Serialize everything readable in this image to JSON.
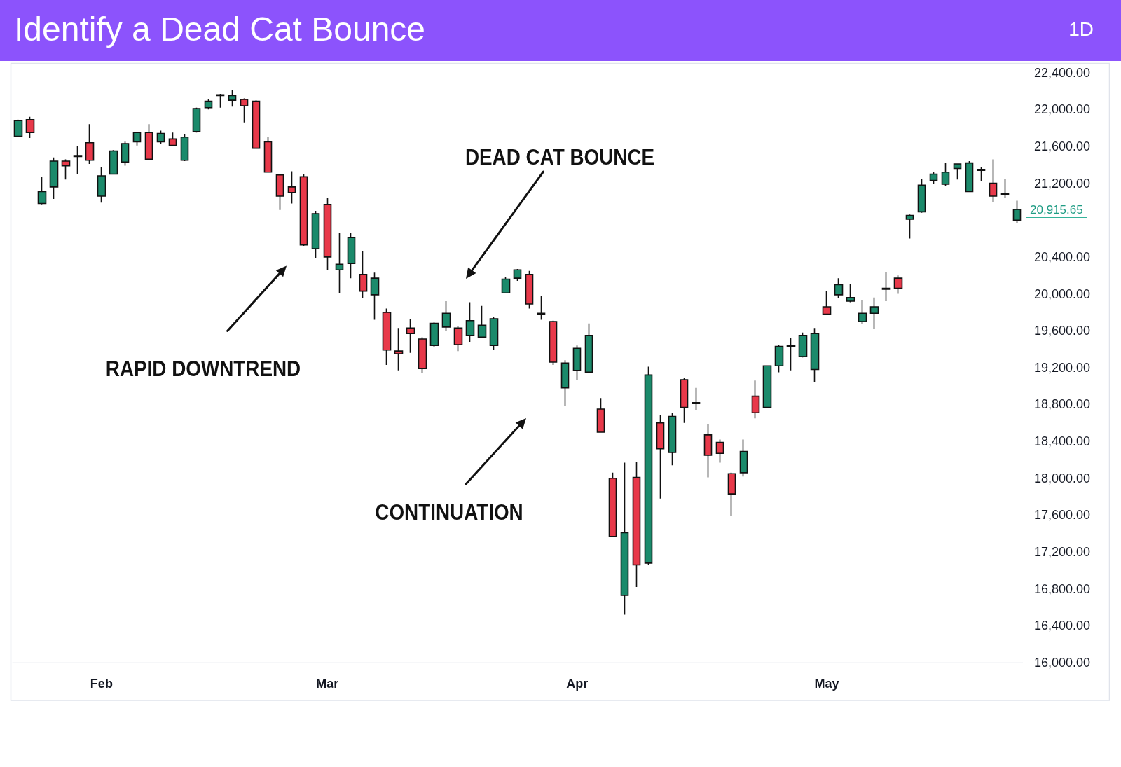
{
  "chart_data": {
    "type": "candlestick",
    "title": "Identify a Dead Cat Bounce",
    "subtitle": "1D",
    "annotations": [
      "RAPID DOWNTREND",
      "DEAD CAT BOUNCE",
      "CONTINUATION",
      "20,915.65"
    ],
    "categories": [
      null,
      null,
      null,
      null,
      null,
      null,
      null,
      "Feb",
      null,
      null,
      null,
      null,
      null,
      null,
      null,
      null,
      null,
      null,
      null,
      null,
      null,
      null,
      null,
      null,
      null,
      null,
      "Mar",
      null,
      null,
      null,
      null,
      null,
      null,
      null,
      null,
      null,
      null,
      null,
      null,
      null,
      null,
      null,
      null,
      null,
      null,
      null,
      null,
      "Apr",
      null,
      null,
      null,
      null,
      null,
      null,
      null,
      null,
      null,
      null,
      null,
      null,
      null,
      null,
      null,
      null,
      null,
      null,
      null,
      null,
      "May",
      null,
      null,
      null,
      null,
      null,
      null,
      null,
      null,
      null,
      null,
      null,
      null,
      null,
      null,
      null,
      null
    ],
    "ohlc": [
      [
        21710,
        21890,
        21700,
        21880
      ],
      [
        21890,
        21920,
        21690,
        21750
      ],
      [
        20980,
        21270,
        20970,
        21110
      ],
      [
        21160,
        21480,
        21030,
        21440
      ],
      [
        21440,
        21460,
        21240,
        21390
      ],
      [
        21490,
        21600,
        21300,
        21500
      ],
      [
        21640,
        21840,
        21410,
        21450
      ],
      [
        21060,
        21380,
        20990,
        21280
      ],
      [
        21300,
        21560,
        21300,
        21550
      ],
      [
        21430,
        21650,
        21390,
        21630
      ],
      [
        21650,
        21760,
        21610,
        21750
      ],
      [
        21750,
        21840,
        21460,
        21460
      ],
      [
        21650,
        21770,
        21630,
        21740
      ],
      [
        21680,
        21750,
        21610,
        21610
      ],
      [
        21450,
        21730,
        21440,
        21700
      ],
      [
        21760,
        22020,
        21750,
        22010
      ],
      [
        22020,
        22110,
        22000,
        22090
      ],
      [
        22150,
        22170,
        22020,
        22160
      ],
      [
        22100,
        22210,
        22030,
        22150
      ],
      [
        22110,
        22120,
        21860,
        22040
      ],
      [
        22090,
        22100,
        21580,
        21580
      ],
      [
        21650,
        21700,
        21320,
        21320
      ],
      [
        21290,
        21300,
        20910,
        21060
      ],
      [
        21160,
        21330,
        20980,
        21100
      ],
      [
        21270,
        21300,
        20520,
        20530
      ],
      [
        20490,
        20900,
        20390,
        20870
      ],
      [
        20970,
        21040,
        20260,
        20400
      ],
      [
        20260,
        20660,
        20010,
        20320
      ],
      [
        20330,
        20660,
        20170,
        20610
      ],
      [
        20210,
        20460,
        19950,
        20030
      ],
      [
        19990,
        20230,
        19720,
        20170
      ],
      [
        19800,
        19840,
        19230,
        19390
      ],
      [
        19380,
        19630,
        19170,
        19350
      ],
      [
        19630,
        19730,
        19360,
        19570
      ],
      [
        19510,
        19530,
        19140,
        19190
      ],
      [
        19440,
        19690,
        19420,
        19680
      ],
      [
        19640,
        19920,
        19600,
        19790
      ],
      [
        19630,
        19650,
        19380,
        19450
      ],
      [
        19550,
        19910,
        19480,
        19710
      ],
      [
        19530,
        19870,
        19520,
        19660
      ],
      [
        19440,
        19750,
        19390,
        19730
      ],
      [
        20010,
        20180,
        20010,
        20160
      ],
      [
        20170,
        20270,
        20140,
        20260
      ],
      [
        20210,
        20250,
        19840,
        19890
      ],
      [
        19790,
        19980,
        19720,
        19780
      ],
      [
        19700,
        19710,
        19230,
        19260
      ],
      [
        18980,
        19280,
        18780,
        19250
      ],
      [
        19170,
        19440,
        19070,
        19410
      ],
      [
        19150,
        19680,
        19140,
        19550
      ],
      [
        18750,
        18870,
        18500,
        18500
      ],
      [
        18000,
        18060,
        17360,
        17370
      ],
      [
        16730,
        18170,
        16520,
        17410
      ],
      [
        18010,
        18180,
        16820,
        17060
      ],
      [
        17080,
        19210,
        17060,
        19120
      ],
      [
        18600,
        18690,
        17780,
        18320
      ],
      [
        18280,
        18710,
        18140,
        18670
      ],
      [
        19070,
        19090,
        18600,
        18770
      ],
      [
        18820,
        18980,
        18740,
        18810
      ],
      [
        18470,
        18590,
        18010,
        18250
      ],
      [
        18390,
        18420,
        18170,
        18270
      ],
      [
        18050,
        18060,
        17590,
        17830
      ],
      [
        18060,
        18420,
        18020,
        18290
      ],
      [
        18890,
        19060,
        18650,
        18710
      ],
      [
        18770,
        19220,
        18770,
        19220
      ],
      [
        19220,
        19450,
        19150,
        19430
      ],
      [
        19430,
        19520,
        19170,
        19440
      ],
      [
        19320,
        19580,
        19310,
        19550
      ],
      [
        19180,
        19630,
        19040,
        19570
      ],
      [
        19860,
        20030,
        19780,
        19780
      ],
      [
        19990,
        20170,
        19950,
        20100
      ],
      [
        19920,
        20110,
        19910,
        19960
      ],
      [
        19700,
        19930,
        19670,
        19790
      ],
      [
        19790,
        19960,
        19620,
        19860
      ],
      [
        20050,
        20240,
        19920,
        20060
      ],
      [
        20170,
        20200,
        20000,
        20060
      ],
      [
        20810,
        20860,
        20600,
        20850
      ],
      [
        20890,
        21250,
        20880,
        21180
      ],
      [
        21230,
        21320,
        21190,
        21300
      ],
      [
        21190,
        21420,
        21170,
        21320
      ],
      [
        21360,
        21410,
        21240,
        21410
      ],
      [
        21110,
        21440,
        21110,
        21420
      ],
      [
        21350,
        21380,
        21220,
        21340
      ],
      [
        21200,
        21460,
        21000,
        21060
      ],
      [
        21090,
        21250,
        21040,
        21080
      ],
      [
        20800,
        21010,
        20770,
        20915.65
      ]
    ],
    "colors": [
      "#1b8a6b",
      "#e8394a",
      "#1b8a6b",
      "#1b8a6b",
      "#e8394a",
      "#1b8a6b",
      "#e8394a",
      "#1b8a6b",
      "#1b8a6b",
      "#1b8a6b",
      "#1b8a6b",
      "#e8394a",
      "#1b8a6b",
      "#e8394a",
      "#1b8a6b",
      "#1b8a6b",
      "#1b8a6b",
      "#1b8a6b",
      "#1b8a6b",
      "#e8394a",
      "#e8394a",
      "#e8394a",
      "#e8394a",
      "#e8394a",
      "#e8394a",
      "#1b8a6b",
      "#e8394a",
      "#1b8a6b",
      "#1b8a6b",
      "#e8394a",
      "#1b8a6b",
      "#e8394a",
      "#e8394a",
      "#e8394a",
      "#e8394a",
      "#1b8a6b",
      "#1b8a6b",
      "#e8394a",
      "#1b8a6b",
      "#1b8a6b",
      "#1b8a6b",
      "#1b8a6b",
      "#1b8a6b",
      "#e8394a",
      "#e8394a",
      "#e8394a",
      "#1b8a6b",
      "#1b8a6b",
      "#1b8a6b",
      "#e8394a",
      "#e8394a",
      "#1b8a6b",
      "#e8394a",
      "#1b8a6b",
      "#e8394a",
      "#1b8a6b",
      "#e8394a",
      "#e8394a",
      "#e8394a",
      "#e8394a",
      "#e8394a",
      "#1b8a6b",
      "#e8394a",
      "#1b8a6b",
      "#1b8a6b",
      "#1b8a6b",
      "#1b8a6b",
      "#1b8a6b",
      "#e8394a",
      "#1b8a6b",
      "#1b8a6b",
      "#1b8a6b",
      "#1b8a6b",
      "#1b8a6b",
      "#e8394a",
      "#1b8a6b",
      "#1b8a6b",
      "#1b8a6b",
      "#1b8a6b",
      "#1b8a6b",
      "#1b8a6b",
      "#e8394a",
      "#e8394a",
      "#e8394a",
      "#1b8a6b"
    ],
    "ylim": [
      16000,
      22500
    ],
    "yticks": [
      {
        "value": 16000,
        "label": "16,000.00"
      },
      {
        "value": 16400,
        "label": "16,400.00"
      },
      {
        "value": 16800,
        "label": "16,800.00"
      },
      {
        "value": 17200,
        "label": "17,200.00"
      },
      {
        "value": 17600,
        "label": "17,600.00"
      },
      {
        "value": 18000,
        "label": "18,000.00"
      },
      {
        "value": 18400,
        "label": "18,400.00"
      },
      {
        "value": 18800,
        "label": "18,800.00"
      },
      {
        "value": 19200,
        "label": "19,200.00"
      },
      {
        "value": 19600,
        "label": "19,600.00"
      },
      {
        "value": 20000,
        "label": "20,000.00"
      },
      {
        "value": 20400,
        "label": "20,400.00"
      },
      {
        "value": 21200,
        "label": "21,200.00"
      },
      {
        "value": 21600,
        "label": "21,600.00"
      },
      {
        "value": 22000,
        "label": "22,000.00"
      },
      {
        "value": 22400,
        "label": "22,400.00"
      }
    ]
  }
}
